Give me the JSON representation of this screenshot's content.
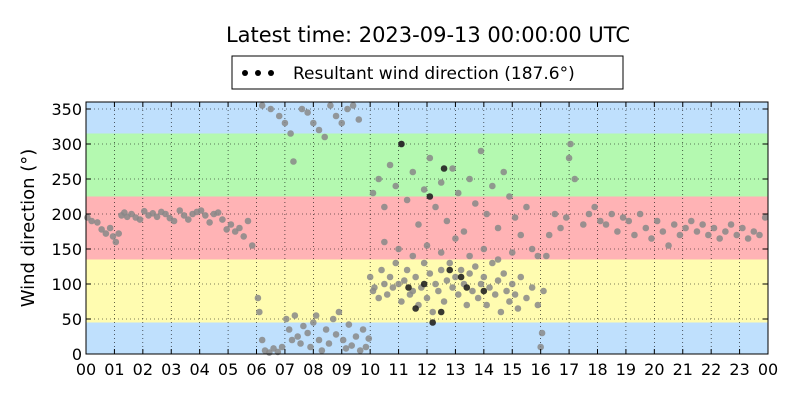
{
  "title": "Latest time: 2023-09-13 00:00:00 UTC",
  "legend": {
    "label": "Resultant wind direction (187.6°)"
  },
  "chart_data": {
    "type": "scatter",
    "title": "Latest time: 2023-09-13 00:00:00 UTC",
    "ylabel": "Wind direction (°)",
    "xlabel": "",
    "xlim": [
      0,
      24
    ],
    "ylim": [
      0,
      360
    ],
    "grid": true,
    "legend_position": "top-center",
    "x_ticks": [
      "00",
      "01",
      "02",
      "03",
      "04",
      "05",
      "06",
      "07",
      "08",
      "09",
      "10",
      "11",
      "12",
      "13",
      "14",
      "15",
      "16",
      "17",
      "18",
      "19",
      "20",
      "21",
      "22",
      "23",
      "00"
    ],
    "y_ticks": [
      0,
      50,
      100,
      150,
      200,
      250,
      300,
      350
    ],
    "bands": [
      {
        "from": 0,
        "to": 45,
        "color": "#bfe0fd"
      },
      {
        "from": 45,
        "to": 135,
        "color": "#fffcb0"
      },
      {
        "from": 135,
        "to": 225,
        "color": "#ffb3b5"
      },
      {
        "from": 225,
        "to": 315,
        "color": "#b4f9b0"
      },
      {
        "from": 315,
        "to": 360,
        "color": "#bfe0fd"
      }
    ],
    "series": [
      {
        "name": "Resultant wind direction (187.6°)",
        "color": "#888888",
        "points": [
          [
            0.05,
            195
          ],
          [
            0.2,
            190
          ],
          [
            0.4,
            188
          ],
          [
            0.55,
            178
          ],
          [
            0.7,
            172
          ],
          [
            0.85,
            180
          ],
          [
            0.95,
            168
          ],
          [
            1.05,
            160
          ],
          [
            1.15,
            172
          ],
          [
            1.25,
            198
          ],
          [
            1.35,
            202
          ],
          [
            1.45,
            196
          ],
          [
            1.6,
            200
          ],
          [
            1.75,
            195
          ],
          [
            1.9,
            192
          ],
          [
            2.05,
            204
          ],
          [
            2.2,
            198
          ],
          [
            2.35,
            201
          ],
          [
            2.5,
            196
          ],
          [
            2.65,
            203
          ],
          [
            2.8,
            200
          ],
          [
            2.95,
            194
          ],
          [
            3.1,
            190
          ],
          [
            3.3,
            205
          ],
          [
            3.45,
            198
          ],
          [
            3.6,
            192
          ],
          [
            3.75,
            200
          ],
          [
            3.9,
            203
          ],
          [
            4.05,
            205
          ],
          [
            4.2,
            198
          ],
          [
            4.35,
            188
          ],
          [
            4.5,
            200
          ],
          [
            4.65,
            202
          ],
          [
            4.8,
            192
          ],
          [
            4.95,
            178
          ],
          [
            5.1,
            185
          ],
          [
            5.25,
            175
          ],
          [
            5.4,
            180
          ],
          [
            5.55,
            168
          ],
          [
            5.7,
            190
          ],
          [
            5.85,
            155
          ],
          [
            6.05,
            80
          ],
          [
            6.1,
            60
          ],
          [
            6.2,
            20
          ],
          [
            6.3,
            5
          ],
          [
            6.45,
            2
          ],
          [
            6.6,
            8
          ],
          [
            6.75,
            3
          ],
          [
            6.9,
            10
          ],
          [
            7.05,
            50
          ],
          [
            7.15,
            35
          ],
          [
            7.25,
            20
          ],
          [
            7.35,
            55
          ],
          [
            7.45,
            25
          ],
          [
            7.55,
            15
          ],
          [
            7.65,
            40
          ],
          [
            7.8,
            30
          ],
          [
            7.9,
            10
          ],
          [
            8.0,
            45
          ],
          [
            8.1,
            55
          ],
          [
            8.2,
            20
          ],
          [
            8.3,
            5
          ],
          [
            8.45,
            35
          ],
          [
            8.55,
            15
          ],
          [
            8.7,
            50
          ],
          [
            8.8,
            28
          ],
          [
            8.9,
            60
          ],
          [
            9.05,
            20
          ],
          [
            9.15,
            8
          ],
          [
            9.25,
            42
          ],
          [
            9.35,
            12
          ],
          [
            9.5,
            25
          ],
          [
            9.65,
            5
          ],
          [
            9.75,
            35
          ],
          [
            9.85,
            10
          ],
          [
            9.95,
            22
          ],
          [
            6.2,
            355
          ],
          [
            6.5,
            350
          ],
          [
            6.8,
            340
          ],
          [
            7.0,
            330
          ],
          [
            7.2,
            315
          ],
          [
            7.3,
            275
          ],
          [
            7.6,
            350
          ],
          [
            7.8,
            345
          ],
          [
            8.0,
            330
          ],
          [
            8.2,
            320
          ],
          [
            8.4,
            310
          ],
          [
            8.6,
            355
          ],
          [
            8.8,
            340
          ],
          [
            9.0,
            330
          ],
          [
            9.2,
            350
          ],
          [
            9.4,
            355
          ],
          [
            9.6,
            335
          ],
          [
            10.0,
            110
          ],
          [
            10.1,
            90
          ],
          [
            10.15,
            95
          ],
          [
            10.3,
            80
          ],
          [
            10.4,
            120
          ],
          [
            10.5,
            100
          ],
          [
            10.6,
            85
          ],
          [
            10.7,
            110
          ],
          [
            10.8,
            95
          ],
          [
            10.9,
            130
          ],
          [
            11.0,
            100
          ],
          [
            11.1,
            75
          ],
          [
            11.2,
            105
          ],
          [
            11.3,
            120
          ],
          [
            11.4,
            85
          ],
          [
            11.5,
            90
          ],
          [
            11.6,
            110
          ],
          [
            11.7,
            70
          ],
          [
            11.8,
            95
          ],
          [
            11.9,
            130
          ],
          [
            12.0,
            80
          ],
          [
            12.1,
            115
          ],
          [
            12.2,
            60
          ],
          [
            12.3,
            100
          ],
          [
            12.4,
            90
          ],
          [
            12.5,
            120
          ],
          [
            12.6,
            75
          ],
          [
            12.7,
            105
          ],
          [
            12.8,
            130
          ],
          [
            12.9,
            95
          ],
          [
            13.0,
            110
          ],
          [
            13.1,
            85
          ],
          [
            13.2,
            120
          ],
          [
            13.3,
            100
          ],
          [
            13.4,
            70
          ],
          [
            13.5,
            115
          ],
          [
            13.6,
            90
          ],
          [
            13.7,
            125
          ],
          [
            13.8,
            80
          ],
          [
            13.9,
            100
          ],
          [
            14.0,
            110
          ],
          [
            14.1,
            70
          ],
          [
            14.2,
            95
          ],
          [
            14.3,
            130
          ],
          [
            14.4,
            85
          ],
          [
            14.5,
            105
          ],
          [
            14.6,
            60
          ],
          [
            14.7,
            115
          ],
          [
            14.8,
            90
          ],
          [
            14.9,
            75
          ],
          [
            15.0,
            100
          ],
          [
            15.1,
            85
          ],
          [
            15.2,
            65
          ],
          [
            15.3,
            110
          ],
          [
            15.5,
            80
          ],
          [
            15.7,
            95
          ],
          [
            15.9,
            70
          ],
          [
            10.1,
            230
          ],
          [
            10.3,
            250
          ],
          [
            10.5,
            210
          ],
          [
            10.7,
            270
          ],
          [
            10.9,
            240
          ],
          [
            11.1,
            300
          ],
          [
            11.3,
            220
          ],
          [
            11.5,
            260
          ],
          [
            11.7,
            185
          ],
          [
            11.9,
            235
          ],
          [
            12.1,
            280
          ],
          [
            12.3,
            210
          ],
          [
            12.5,
            245
          ],
          [
            12.7,
            190
          ],
          [
            12.9,
            265
          ],
          [
            13.1,
            230
          ],
          [
            13.3,
            175
          ],
          [
            13.5,
            250
          ],
          [
            13.7,
            215
          ],
          [
            13.9,
            290
          ],
          [
            14.1,
            200
          ],
          [
            14.3,
            240
          ],
          [
            14.5,
            180
          ],
          [
            14.7,
            260
          ],
          [
            14.9,
            225
          ],
          [
            15.1,
            195
          ],
          [
            15.3,
            170
          ],
          [
            15.5,
            210
          ],
          [
            15.7,
            150
          ],
          [
            15.9,
            140
          ],
          [
            10.5,
            160
          ],
          [
            11.0,
            150
          ],
          [
            11.5,
            140
          ],
          [
            12.0,
            155
          ],
          [
            12.5,
            145
          ],
          [
            13.0,
            165
          ],
          [
            13.5,
            140
          ],
          [
            14.0,
            150
          ],
          [
            14.5,
            135
          ],
          [
            15.0,
            145
          ],
          [
            16.0,
            10
          ],
          [
            16.05,
            30
          ],
          [
            16.1,
            90
          ],
          [
            16.2,
            140
          ],
          [
            16.3,
            170
          ],
          [
            16.5,
            200
          ],
          [
            16.7,
            180
          ],
          [
            16.9,
            195
          ],
          [
            17.0,
            280
          ],
          [
            17.05,
            300
          ],
          [
            17.2,
            250
          ],
          [
            17.5,
            185
          ],
          [
            17.7,
            200
          ],
          [
            17.9,
            210
          ],
          [
            18.1,
            190
          ],
          [
            18.3,
            185
          ],
          [
            18.5,
            200
          ],
          [
            18.7,
            175
          ],
          [
            18.9,
            195
          ],
          [
            19.1,
            190
          ],
          [
            19.3,
            170
          ],
          [
            19.5,
            200
          ],
          [
            19.7,
            180
          ],
          [
            19.9,
            165
          ],
          [
            20.1,
            190
          ],
          [
            20.3,
            175
          ],
          [
            20.5,
            155
          ],
          [
            20.7,
            185
          ],
          [
            20.9,
            170
          ],
          [
            21.1,
            180
          ],
          [
            21.3,
            190
          ],
          [
            21.5,
            175
          ],
          [
            21.7,
            185
          ],
          [
            21.9,
            170
          ],
          [
            22.1,
            180
          ],
          [
            22.3,
            165
          ],
          [
            22.5,
            175
          ],
          [
            22.7,
            185
          ],
          [
            22.9,
            170
          ],
          [
            23.1,
            180
          ],
          [
            23.3,
            165
          ],
          [
            23.5,
            175
          ],
          [
            23.7,
            170
          ],
          [
            23.9,
            195
          ]
        ],
        "dark_points": [
          [
            11.35,
            95
          ],
          [
            11.6,
            65
          ],
          [
            11.9,
            100
          ],
          [
            12.2,
            45
          ],
          [
            12.5,
            60
          ],
          [
            12.8,
            120
          ],
          [
            13.2,
            110
          ],
          [
            14.0,
            90
          ],
          [
            11.1,
            300
          ],
          [
            12.1,
            225
          ],
          [
            12.6,
            265
          ],
          [
            13.4,
            95
          ]
        ]
      }
    ]
  }
}
